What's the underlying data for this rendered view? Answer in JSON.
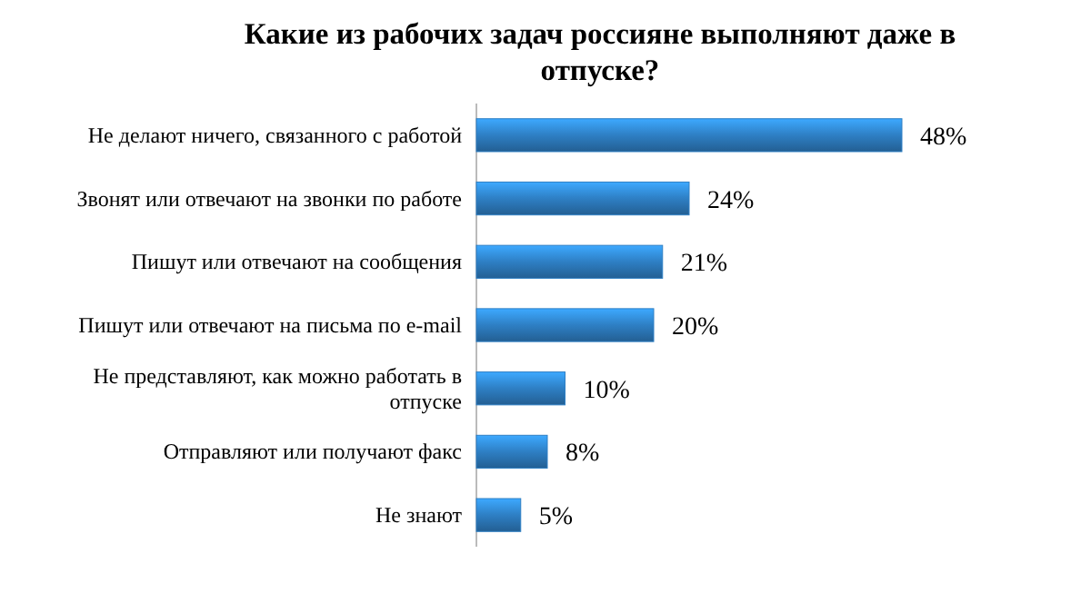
{
  "chart_data": {
    "type": "bar",
    "orientation": "horizontal",
    "title": "Какие из рабочих задач россияне выполняют даже в отпуске?",
    "categories": [
      "Не делают ничего, связанного с работой",
      "Звонят или отвечают на звонки по работе",
      "Пишут или отвечают на сообщения",
      "Пишут или отвечают на письма по e-mail",
      "Не представляют, как можно работать в отпуске",
      "Отправляют или получают факс",
      "Не знают"
    ],
    "values": [
      48,
      24,
      21,
      20,
      10,
      8,
      5
    ],
    "value_labels": [
      "48%",
      "24%",
      "21%",
      "20%",
      "10%",
      "8%",
      "5%"
    ],
    "color": "#2e7fc4"
  }
}
